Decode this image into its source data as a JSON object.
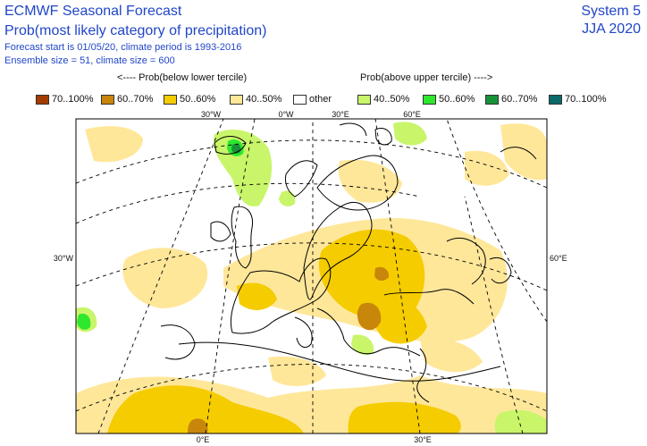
{
  "header": {
    "title": "ECMWF Seasonal Forecast",
    "subtitle": "Prob(most likely category of precipitation)",
    "forecast_info": "Forecast start is 01/05/20, climate period is 1993-2016",
    "ensemble_info": "Ensemble size = 51, climate size = 600",
    "system": "System 5",
    "season": "JJA 2020"
  },
  "legend": {
    "below_caption": "<---- Prob(below lower tercile)",
    "above_caption": "Prob(above upper tercile) ---->",
    "items": [
      {
        "label": "70..100%",
        "color": "#a23c00"
      },
      {
        "label": "60..70%",
        "color": "#c8860a"
      },
      {
        "label": "50..60%",
        "color": "#f5cc00"
      },
      {
        "label": "40..50%",
        "color": "#ffe79a"
      },
      {
        "label": "other",
        "color": "#ffffff"
      },
      {
        "label": "40..50%",
        "color": "#c9f56a"
      },
      {
        "label": "50..60%",
        "color": "#2de82d"
      },
      {
        "label": "60..70%",
        "color": "#189238"
      },
      {
        "label": "70..100%",
        "color": "#0a6a6a"
      }
    ]
  },
  "map": {
    "graticule_labels": {
      "top_30w": "30°W",
      "top_0w": "0°W",
      "top_30e": "30°E",
      "top_60e": "60°E",
      "left_30w": "30°W",
      "right_60e": "60°E",
      "bottom_0e": "0°E",
      "bottom_30e": "30°E"
    }
  }
}
